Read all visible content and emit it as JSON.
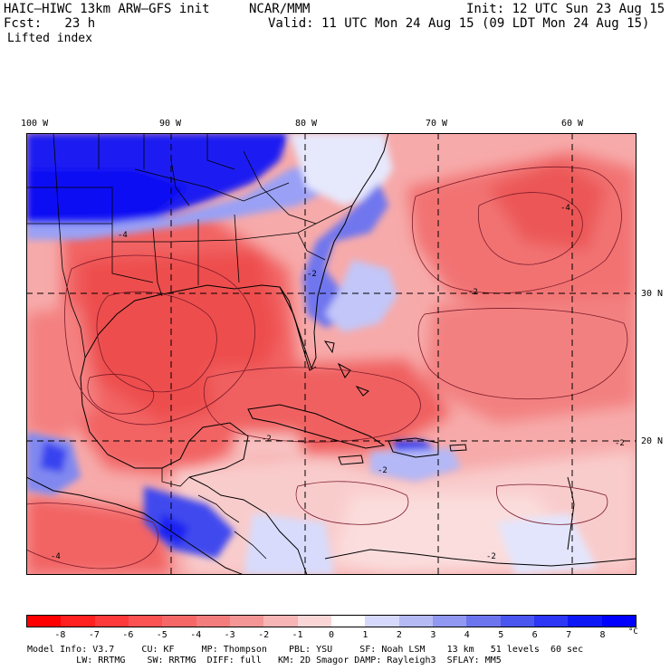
{
  "header": {
    "model": "HAIC–HIWC 13km ARW–GFS init",
    "org": "NCAR/MMM",
    "init": "Init: 12 UTC Sun 23 Aug 15",
    "fcst": "Fcst:   23 h",
    "valid": "Valid: 11 UTC Mon 24 Aug 15 (09 LDT Mon 24 Aug 15)",
    "field": "Lifted index"
  },
  "map": {
    "lon_labels": [
      "100 W",
      "90 W",
      "80 W",
      "70 W",
      "60 W"
    ],
    "lat_labels": [
      "30 N",
      "20 N"
    ],
    "contour_labels": [
      "-4",
      "-2",
      "-2",
      "-4",
      "-2",
      "-4",
      "-2",
      "-2",
      "-2"
    ]
  },
  "legend": {
    "ticks": [
      "-8",
      "-7",
      "-6",
      "-5",
      "-4",
      "-3",
      "-2",
      "-1",
      "0",
      "1",
      "2",
      "3",
      "4",
      "5",
      "6",
      "7",
      "8"
    ],
    "unit": "°C",
    "colors": [
      "#ff0000",
      "#ff2020",
      "#ff3a3a",
      "#fb5252",
      "#f66868",
      "#f37d7d",
      "#f49696",
      "#f7b5b5",
      "#fbd6d6",
      "#ffffff",
      "#d6d9fb",
      "#b5baf5",
      "#9098f2",
      "#6c75ee",
      "#4b55f0",
      "#2c36f4",
      "#0e18f7",
      "#0000ff"
    ]
  },
  "footer": {
    "line1": "Model Info: V3.7     CU: KF     MP: Thompson    PBL: YSU     SF: Noah LSM    13 km   51 levels  60 sec",
    "line2": "         LW: RRTMG    SW: RRTMG  DIFF: full   KM: 2D Smagor DAMP: Rayleigh3  SFLAY: MM5"
  }
}
